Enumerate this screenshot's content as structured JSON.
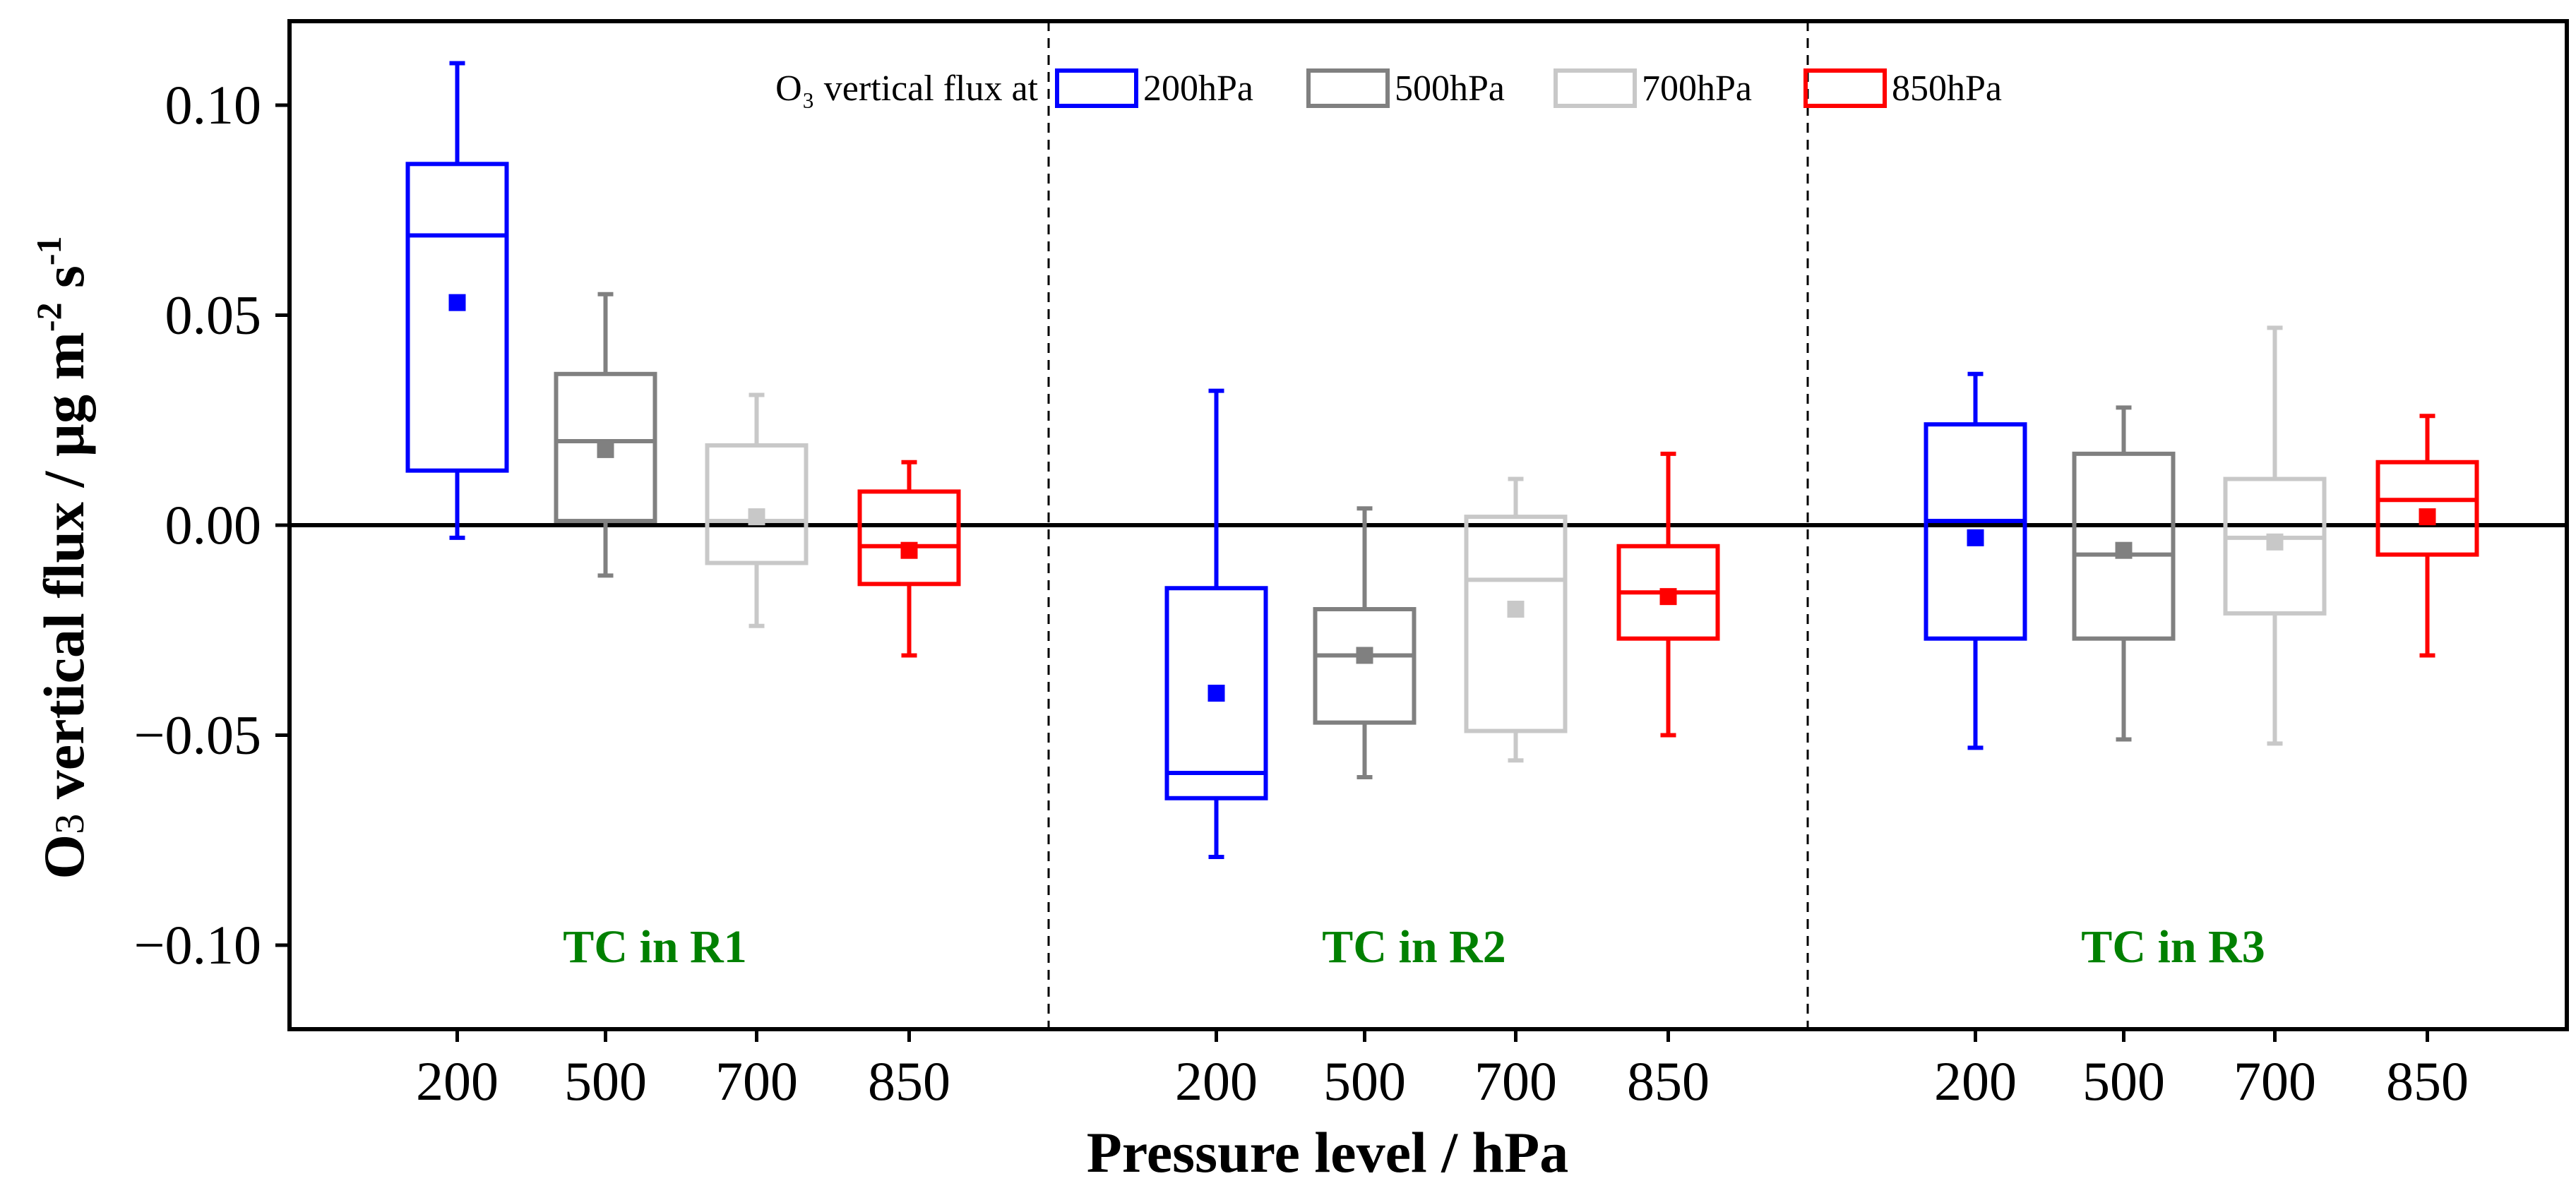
{
  "chart_data": {
    "type": "box",
    "xlabel": "Pressure level / hPa",
    "ylabel": "O₃ vertical flux / µg m⁻² s⁻¹",
    "ylabel_main": "O",
    "ylabel_sub": "3",
    "ylabel_rest": " vertical flux / µg m",
    "ylabel_sup1": "-2",
    "ylabel_mid": " s",
    "ylabel_sup2": "-1",
    "ylim": [
      -0.12,
      0.12
    ],
    "yticks": [
      0.1,
      0.05,
      0.0,
      -0.05,
      -0.1
    ],
    "ytick_labels": [
      "0.10",
      "0.05",
      "0.00",
      "−0.05",
      "−0.10"
    ],
    "legend": {
      "prefix": "O₃ vertical flux at",
      "entries": [
        {
          "label": "200hPa",
          "color": "#0000ff"
        },
        {
          "label": "500hPa",
          "color": "#808080"
        },
        {
          "label": "700hPa",
          "color": "#c8c8c8"
        },
        {
          "label": "850hPa",
          "color": "#ff0000"
        }
      ]
    },
    "group_label_color": "#008000",
    "zero_line": true,
    "groups": [
      {
        "label": "TC in R1",
        "boxes": [
          {
            "level": "200",
            "color": "#0000ff",
            "whisker_low": -0.003,
            "q1": 0.013,
            "median": 0.069,
            "q3": 0.086,
            "whisker_high": 0.11,
            "mean": 0.053
          },
          {
            "level": "500",
            "color": "#808080",
            "whisker_low": -0.012,
            "q1": 0.001,
            "median": 0.02,
            "q3": 0.036,
            "whisker_high": 0.055,
            "mean": 0.018
          },
          {
            "level": "700",
            "color": "#c8c8c8",
            "whisker_low": -0.024,
            "q1": -0.009,
            "median": 0.001,
            "q3": 0.019,
            "whisker_high": 0.031,
            "mean": 0.002
          },
          {
            "level": "850",
            "color": "#ff0000",
            "whisker_low": -0.031,
            "q1": -0.014,
            "median": -0.005,
            "q3": 0.008,
            "whisker_high": 0.015,
            "mean": -0.006
          }
        ]
      },
      {
        "label": "TC in R2",
        "boxes": [
          {
            "level": "200",
            "color": "#0000ff",
            "whisker_low": -0.079,
            "q1": -0.065,
            "median": -0.059,
            "q3": -0.015,
            "whisker_high": 0.032,
            "mean": -0.04
          },
          {
            "level": "500",
            "color": "#808080",
            "whisker_low": -0.06,
            "q1": -0.047,
            "median": -0.031,
            "q3": -0.02,
            "whisker_high": 0.004,
            "mean": -0.031
          },
          {
            "level": "700",
            "color": "#c8c8c8",
            "whisker_low": -0.056,
            "q1": -0.049,
            "median": -0.013,
            "q3": 0.002,
            "whisker_high": 0.011,
            "mean": -0.02
          },
          {
            "level": "850",
            "color": "#ff0000",
            "whisker_low": -0.05,
            "q1": -0.027,
            "median": -0.016,
            "q3": -0.005,
            "whisker_high": 0.017,
            "mean": -0.017
          }
        ]
      },
      {
        "label": "TC in R3",
        "boxes": [
          {
            "level": "200",
            "color": "#0000ff",
            "whisker_low": -0.053,
            "q1": -0.027,
            "median": 0.001,
            "q3": 0.024,
            "whisker_high": 0.036,
            "mean": -0.003
          },
          {
            "level": "500",
            "color": "#808080",
            "whisker_low": -0.051,
            "q1": -0.027,
            "median": -0.007,
            "q3": 0.017,
            "whisker_high": 0.028,
            "mean": -0.006
          },
          {
            "level": "700",
            "color": "#c8c8c8",
            "whisker_low": -0.052,
            "q1": -0.021,
            "median": -0.003,
            "q3": 0.011,
            "whisker_high": 0.047,
            "mean": -0.004
          },
          {
            "level": "850",
            "color": "#ff0000",
            "whisker_low": -0.031,
            "q1": -0.007,
            "median": 0.006,
            "q3": 0.015,
            "whisker_high": 0.026,
            "mean": 0.002
          }
        ]
      }
    ]
  }
}
